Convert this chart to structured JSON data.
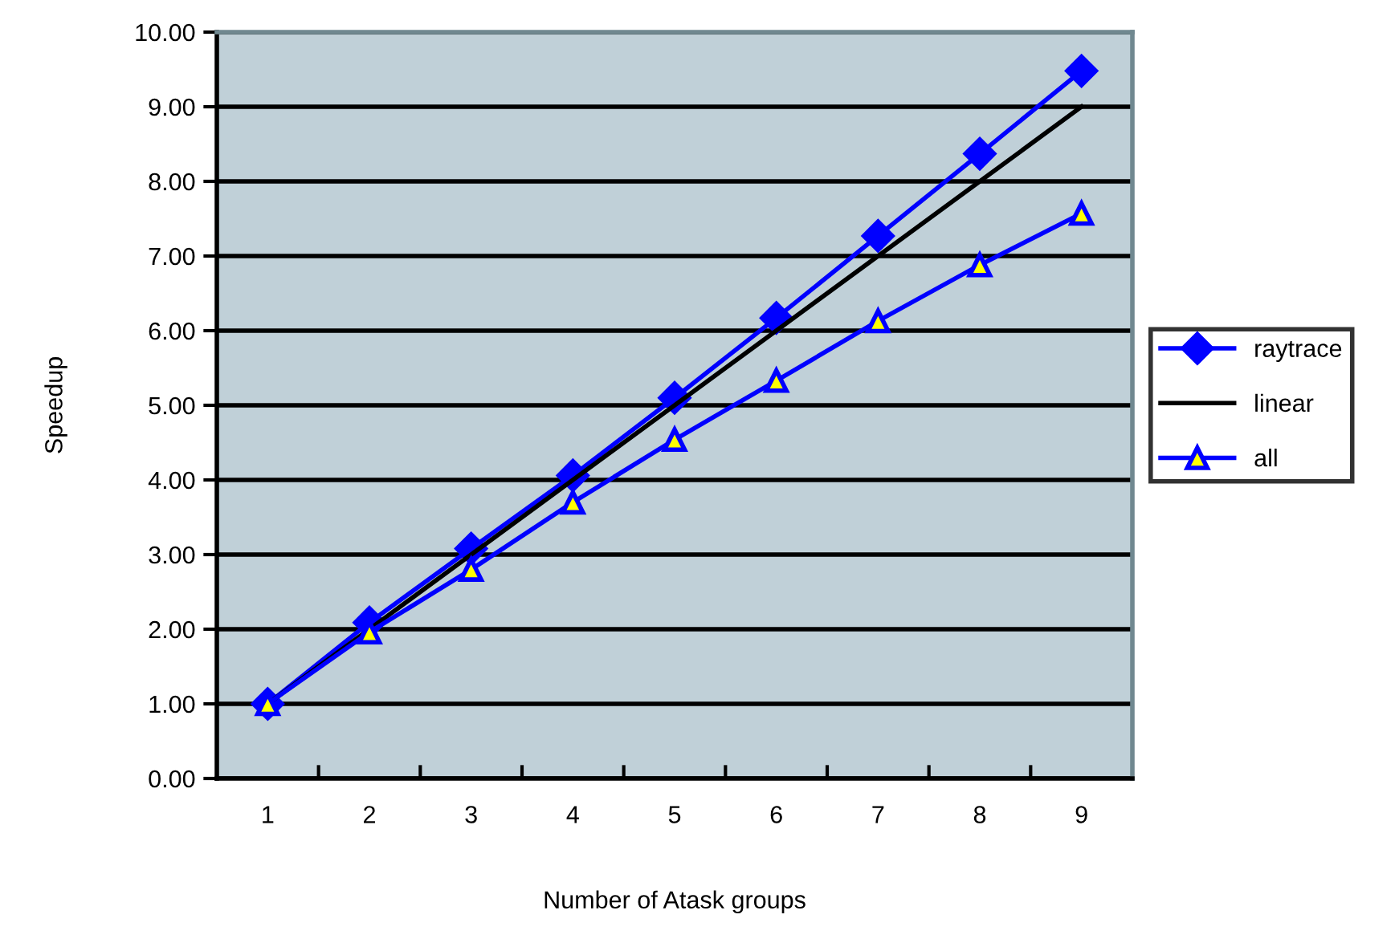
{
  "chart_data": {
    "type": "line",
    "xlabel": "Number of Atask groups",
    "ylabel": "Speedup",
    "categories": [
      "1",
      "2",
      "3",
      "4",
      "5",
      "6",
      "7",
      "8",
      "9"
    ],
    "series": [
      {
        "name": "raytrace",
        "color": "#0000ff",
        "marker": "diamond",
        "values": [
          1.0,
          2.09,
          3.08,
          4.06,
          5.1,
          6.17,
          7.27,
          8.37,
          9.48
        ]
      },
      {
        "name": "linear",
        "color": "#000000",
        "marker": "none",
        "values": [
          1,
          2,
          3,
          4,
          5,
          6,
          7,
          8,
          9
        ]
      },
      {
        "name": "all",
        "color": "#0000ff",
        "marker": "triangle",
        "values": [
          1.0,
          1.96,
          2.8,
          3.7,
          4.54,
          5.33,
          6.13,
          6.88,
          7.57
        ]
      }
    ],
    "ylim": [
      0,
      10
    ],
    "yticks": [
      {
        "value": 0,
        "label": "0.00"
      },
      {
        "value": 1,
        "label": "1.00"
      },
      {
        "value": 2,
        "label": "2.00"
      },
      {
        "value": 3,
        "label": "3.00"
      },
      {
        "value": 4,
        "label": "4.00"
      },
      {
        "value": 5,
        "label": "5.00"
      },
      {
        "value": 6,
        "label": "6.00"
      },
      {
        "value": 7,
        "label": "7.00"
      },
      {
        "value": 8,
        "label": "8.00"
      },
      {
        "value": 9,
        "label": "9.00"
      },
      {
        "value": 10,
        "label": "10.00"
      }
    ],
    "grid": "y",
    "legend": "right"
  }
}
